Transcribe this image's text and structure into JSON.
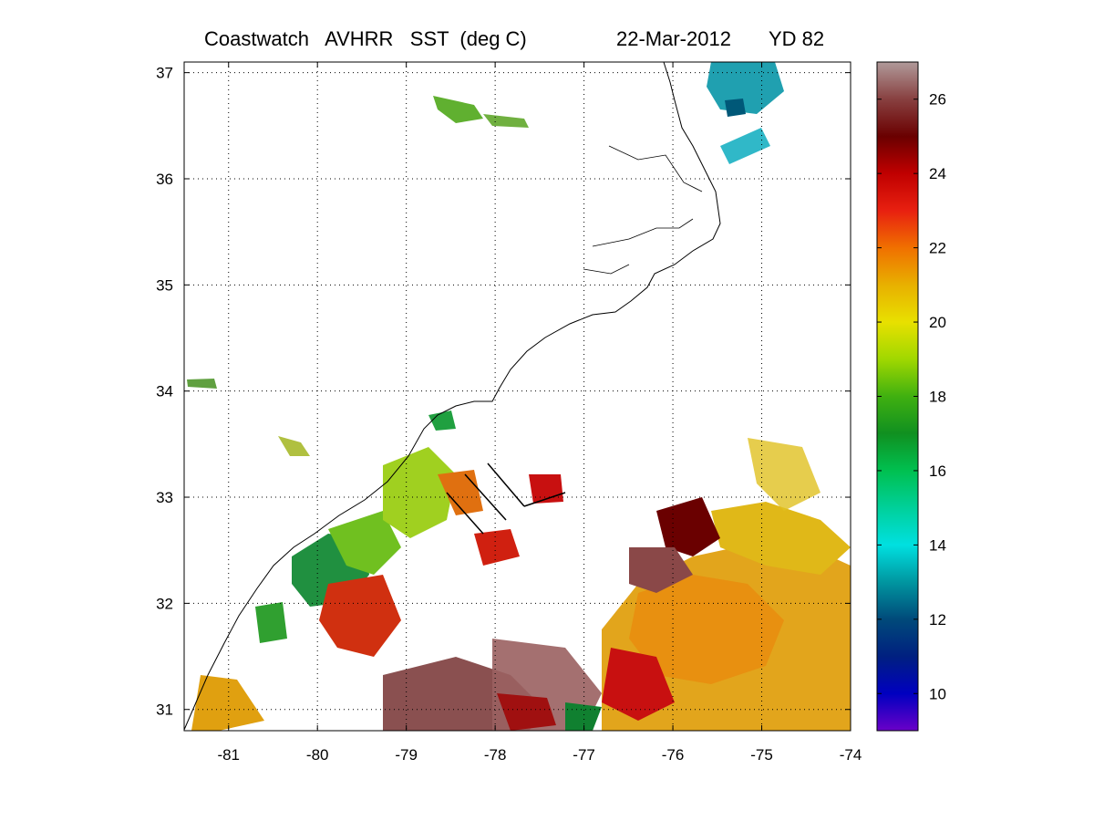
{
  "title": {
    "product": "Coastwatch   AVHRR   SST  (deg C)",
    "date": "22-Mar-2012",
    "yearday": "YD 82"
  },
  "map": {
    "lon_range": [
      -81.5,
      -74
    ],
    "lat_range": [
      30.8,
      37.1
    ],
    "lon_ticks": [
      "-81",
      "-80",
      "-79",
      "-78",
      "-77",
      "-76",
      "-75",
      "-74"
    ],
    "lat_ticks": [
      "31",
      "32",
      "33",
      "34",
      "35",
      "36",
      "37"
    ],
    "grid": "dotted"
  },
  "colorbar": {
    "min": 9,
    "max": 27,
    "ticks": [
      "10",
      "12",
      "14",
      "16",
      "18",
      "20",
      "22",
      "24",
      "26"
    ],
    "colors": [
      "#6a00c8",
      "#0000c0",
      "#002080",
      "#004a7a",
      "#0096a0",
      "#00e0e0",
      "#00d09a",
      "#00c050",
      "#109020",
      "#40b010",
      "#a0d800",
      "#e8e000",
      "#e8b000",
      "#f07000",
      "#e82010",
      "#c00000",
      "#6a0000",
      "#884040",
      "#b09a9a"
    ]
  }
}
